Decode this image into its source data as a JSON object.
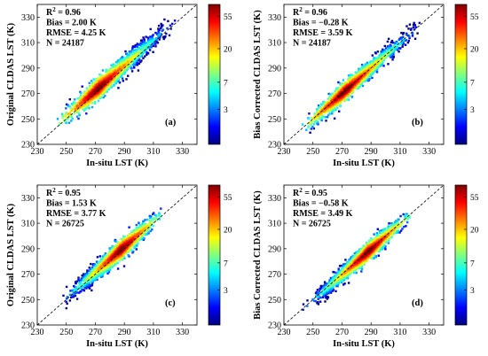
{
  "figure_title": "",
  "colormap": [
    "#00007f",
    "#0000ff",
    "#0080ff",
    "#00ffff",
    "#80ff80",
    "#ffff00",
    "#ff8000",
    "#ff0000",
    "#7f0000"
  ],
  "chart_data": [
    {
      "type": "scatter",
      "panel_label": "(a)",
      "xlabel": "In-situ LST (K)",
      "ylabel": "Original CLDAS LST (K)",
      "xlim": [
        230,
        340
      ],
      "ylim": [
        230,
        340
      ],
      "xticks": [
        "230",
        "250",
        "270",
        "290",
        "310",
        "330"
      ],
      "yticks": [
        "230",
        "250",
        "270",
        "290",
        "310",
        "330"
      ],
      "reference_line": "1:1 dashed",
      "stats": [
        "R² = 0.96",
        "Bias = 2.00 K",
        "RMSE = 4.25 K",
        "N = 24187"
      ],
      "fit": {
        "slope": 1.0,
        "intercept": 2.0,
        "x_range": [
          242,
          330
        ],
        "spread": 4.0,
        "peak_x": 272
      },
      "colorbar": {
        "ticks": [
          "55",
          "20",
          "7",
          "3"
        ],
        "scale": "log",
        "range": [
          1,
          80
        ]
      }
    },
    {
      "type": "scatter",
      "panel_label": "(b)",
      "xlabel": "In-situ LST (K)",
      "ylabel": "Bias Corrected CLDAS LST (K)",
      "xlim": [
        230,
        340
      ],
      "ylim": [
        230,
        340
      ],
      "xticks": [
        "230",
        "250",
        "270",
        "290",
        "310",
        "330"
      ],
      "yticks": [
        "230",
        "250",
        "270",
        "290",
        "310",
        "330"
      ],
      "reference_line": "1:1 dashed",
      "stats": [
        "R² = 0.96",
        "Bias = −0.28 K",
        "RMSE = 3.59 K",
        "N = 24187"
      ],
      "fit": {
        "slope": 1.0,
        "intercept": -0.28,
        "x_range": [
          240,
          330
        ],
        "spread": 3.5,
        "peak_x": 272
      },
      "colorbar": {
        "ticks": [
          "55",
          "20",
          "7",
          "3"
        ],
        "scale": "log",
        "range": [
          1,
          80
        ]
      }
    },
    {
      "type": "scatter",
      "panel_label": "(c)",
      "xlabel": "In-situ LST (K)",
      "ylabel": "Original CLDAS LST (K)",
      "xlim": [
        230,
        340
      ],
      "ylim": [
        230,
        340
      ],
      "xticks": [
        "230",
        "250",
        "270",
        "290",
        "310",
        "330"
      ],
      "yticks": [
        "230",
        "250",
        "270",
        "290",
        "310",
        "330"
      ],
      "reference_line": "1:1 dashed",
      "stats": [
        "R² = 0.95",
        "Bias = 1.53 K",
        "RMSE = 3.77 K",
        "N = 26725"
      ],
      "fit": {
        "slope": 1.0,
        "intercept": 1.53,
        "x_range": [
          244,
          318
        ],
        "spread": 3.7,
        "peak_x": 288
      },
      "colorbar": {
        "ticks": [
          "55",
          "20",
          "7",
          "3"
        ],
        "scale": "log",
        "range": [
          1,
          80
        ]
      }
    },
    {
      "type": "scatter",
      "panel_label": "(d)",
      "xlabel": "In-situ LST (K)",
      "ylabel": "Bias Corrected CLDAS LST (K)",
      "xlim": [
        230,
        340
      ],
      "ylim": [
        230,
        340
      ],
      "xticks": [
        "230",
        "250",
        "270",
        "290",
        "310",
        "330"
      ],
      "yticks": [
        "230",
        "250",
        "270",
        "290",
        "310",
        "330"
      ],
      "reference_line": "1:1 dashed",
      "stats": [
        "R² = 0.95",
        "Bias = −0.58 K",
        "RMSE = 3.49 K",
        "N = 26725"
      ],
      "fit": {
        "slope": 1.0,
        "intercept": -0.58,
        "x_range": [
          242,
          320
        ],
        "spread": 3.4,
        "peak_x": 288
      },
      "colorbar": {
        "ticks": [
          "55",
          "20",
          "7",
          "3"
        ],
        "scale": "log",
        "range": [
          1,
          80
        ]
      }
    }
  ]
}
